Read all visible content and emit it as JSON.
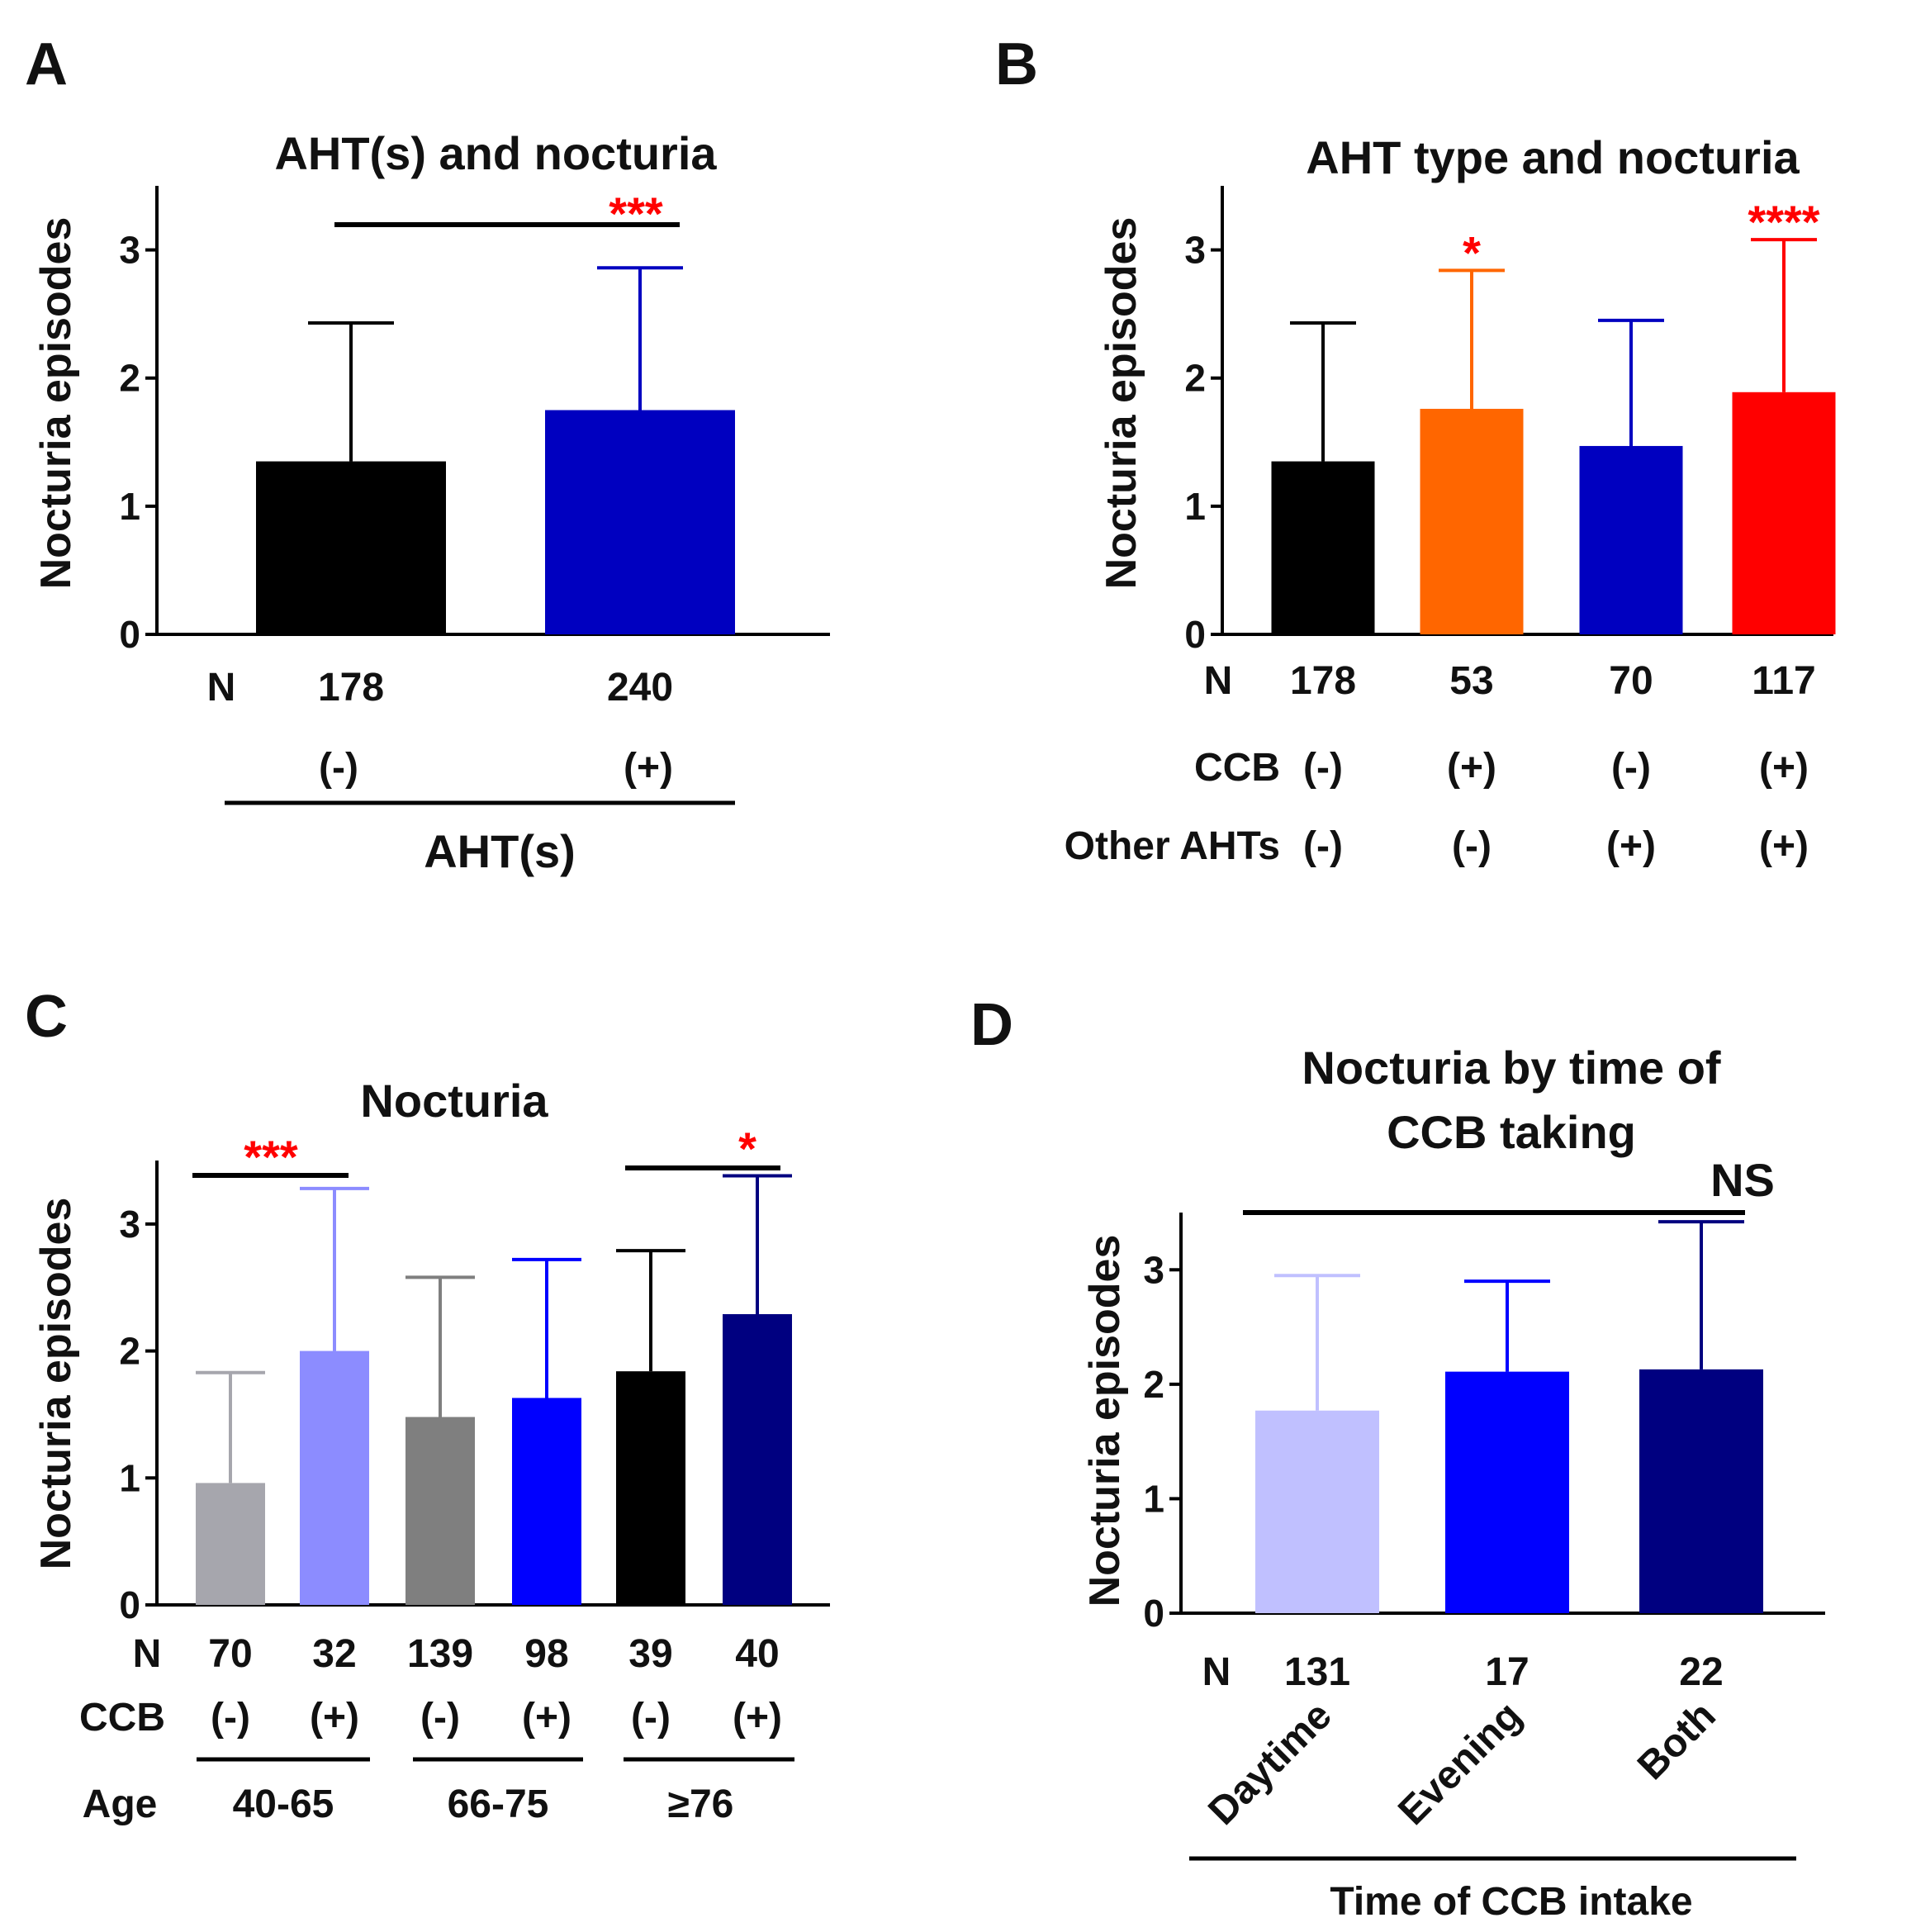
{
  "chart_data": [
    {
      "panel": "A",
      "type": "bar",
      "title": "AHT(s) and nocturia",
      "ylabel": "Nocturia episodes",
      "ylim": [
        0,
        3.5
      ],
      "yticks": [
        "0",
        "1",
        "2",
        "3"
      ],
      "n_label": "N",
      "categories": [
        "(-)",
        "(+)"
      ],
      "n": [
        "178",
        "240"
      ],
      "values": [
        1.35,
        1.75
      ],
      "errors": [
        1.08,
        1.11
      ],
      "colors": [
        "#000000",
        "#0000c0"
      ],
      "group_label": "AHT(s)",
      "significance": [
        {
          "from": 0,
          "to": 1,
          "label": "***"
        }
      ]
    },
    {
      "panel": "B",
      "type": "bar",
      "title": "AHT type and nocturia",
      "ylabel": "Nocturia episodes",
      "ylim": [
        0,
        3.5
      ],
      "yticks": [
        "0",
        "1",
        "2",
        "3"
      ],
      "n_label": "N",
      "n": [
        "178",
        "53",
        "70",
        "117"
      ],
      "rows": [
        {
          "label": "CCB",
          "values": [
            "(-)",
            "(+)",
            "(-)",
            "(+)"
          ]
        },
        {
          "label": "Other AHTs",
          "values": [
            "(-)",
            "(-)",
            "(+)",
            "(+)"
          ]
        }
      ],
      "values": [
        1.35,
        1.76,
        1.47,
        1.89
      ],
      "errors": [
        1.08,
        1.08,
        0.98,
        1.19
      ],
      "colors": [
        "#000000",
        "#ff6600",
        "#0000c0",
        "#ff0000"
      ],
      "stars": [
        "",
        "*",
        "",
        "****"
      ]
    },
    {
      "panel": "C",
      "type": "bar",
      "title": "Nocturia",
      "ylabel": "Nocturia episodes",
      "ylim": [
        0,
        3.5
      ],
      "yticks": [
        "0",
        "1",
        "2",
        "3"
      ],
      "n_label": "N",
      "n": [
        "70",
        "32",
        "139",
        "98",
        "39",
        "40"
      ],
      "rows": [
        {
          "label": "CCB",
          "values": [
            "(-)",
            "(+)",
            "(-)",
            "(+)",
            "(-)",
            "(+)"
          ]
        }
      ],
      "values": [
        0.96,
        2.0,
        1.48,
        1.63,
        1.84,
        2.29
      ],
      "errors": [
        0.87,
        1.28,
        1.1,
        1.09,
        0.95,
        1.09
      ],
      "colors": [
        "#a6a6ad",
        "#8c8cff",
        "#7f7f7f",
        "#0000ff",
        "#000000",
        "#000080"
      ],
      "age_label": "Age",
      "age_groups": [
        "40-65",
        "66-75",
        "≥76"
      ],
      "significance": [
        {
          "from": 0,
          "to": 1,
          "label": "***"
        },
        {
          "from": 4,
          "to": 5,
          "label": "*"
        }
      ]
    },
    {
      "panel": "D",
      "type": "bar",
      "title": [
        "Nocturia by time of",
        "CCB taking"
      ],
      "ylabel": "Nocturia episodes",
      "ylim": [
        0,
        3.5
      ],
      "yticks": [
        "0",
        "1",
        "2",
        "3"
      ],
      "n_label": "N",
      "n": [
        "131",
        "17",
        "22"
      ],
      "categories": [
        "Daytime",
        "Evening",
        "Both"
      ],
      "values": [
        1.77,
        2.11,
        2.13
      ],
      "errors": [
        1.18,
        0.79,
        1.29
      ],
      "colors": [
        "#c0c0ff",
        "#0000ff",
        "#000080"
      ],
      "group_label": "Time of CCB intake",
      "significance": [
        {
          "from": 0,
          "to": 2,
          "label": "NS"
        }
      ]
    }
  ]
}
